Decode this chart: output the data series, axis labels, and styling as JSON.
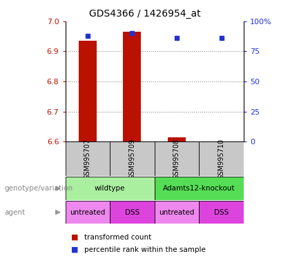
{
  "title": "GDS4366 / 1426954_at",
  "samples": [
    "GSM995707",
    "GSM995709",
    "GSM995708",
    "GSM995710"
  ],
  "transformed_counts": [
    6.935,
    6.965,
    6.615,
    6.6
  ],
  "percentile_ranks": [
    88,
    90,
    86,
    86
  ],
  "ylim_left": [
    6.6,
    7.0
  ],
  "ylim_right": [
    0,
    100
  ],
  "yticks_left": [
    6.6,
    6.7,
    6.8,
    6.9,
    7.0
  ],
  "yticks_right": [
    0,
    25,
    50,
    75,
    100
  ],
  "ytick_labels_right": [
    "0",
    "25",
    "50",
    "75",
    "100%"
  ],
  "bar_color": "#bb1100",
  "dot_color": "#2233cc",
  "grid_color": "#888888",
  "genotype_groups": [
    {
      "label": "wildtype",
      "cols": [
        0,
        1
      ],
      "color": "#aaeea0"
    },
    {
      "label": "Adamts12-knockout",
      "cols": [
        2,
        3
      ],
      "color": "#55dd55"
    }
  ],
  "agent_groups": [
    {
      "label": "untreated",
      "cols": [
        0
      ],
      "color": "#ee88ee"
    },
    {
      "label": "DSS",
      "cols": [
        1
      ],
      "color": "#dd44dd"
    },
    {
      "label": "untreated",
      "cols": [
        2
      ],
      "color": "#ee88ee"
    },
    {
      "label": "DSS",
      "cols": [
        3
      ],
      "color": "#dd44dd"
    }
  ],
  "legend_items": [
    {
      "label": "transformed count",
      "color": "#bb1100"
    },
    {
      "label": "percentile rank within the sample",
      "color": "#2233cc"
    }
  ],
  "label_genotype": "genotype/variation",
  "label_agent": "agent",
  "bar_width": 0.4,
  "sample_bg": "#c8c8c8"
}
